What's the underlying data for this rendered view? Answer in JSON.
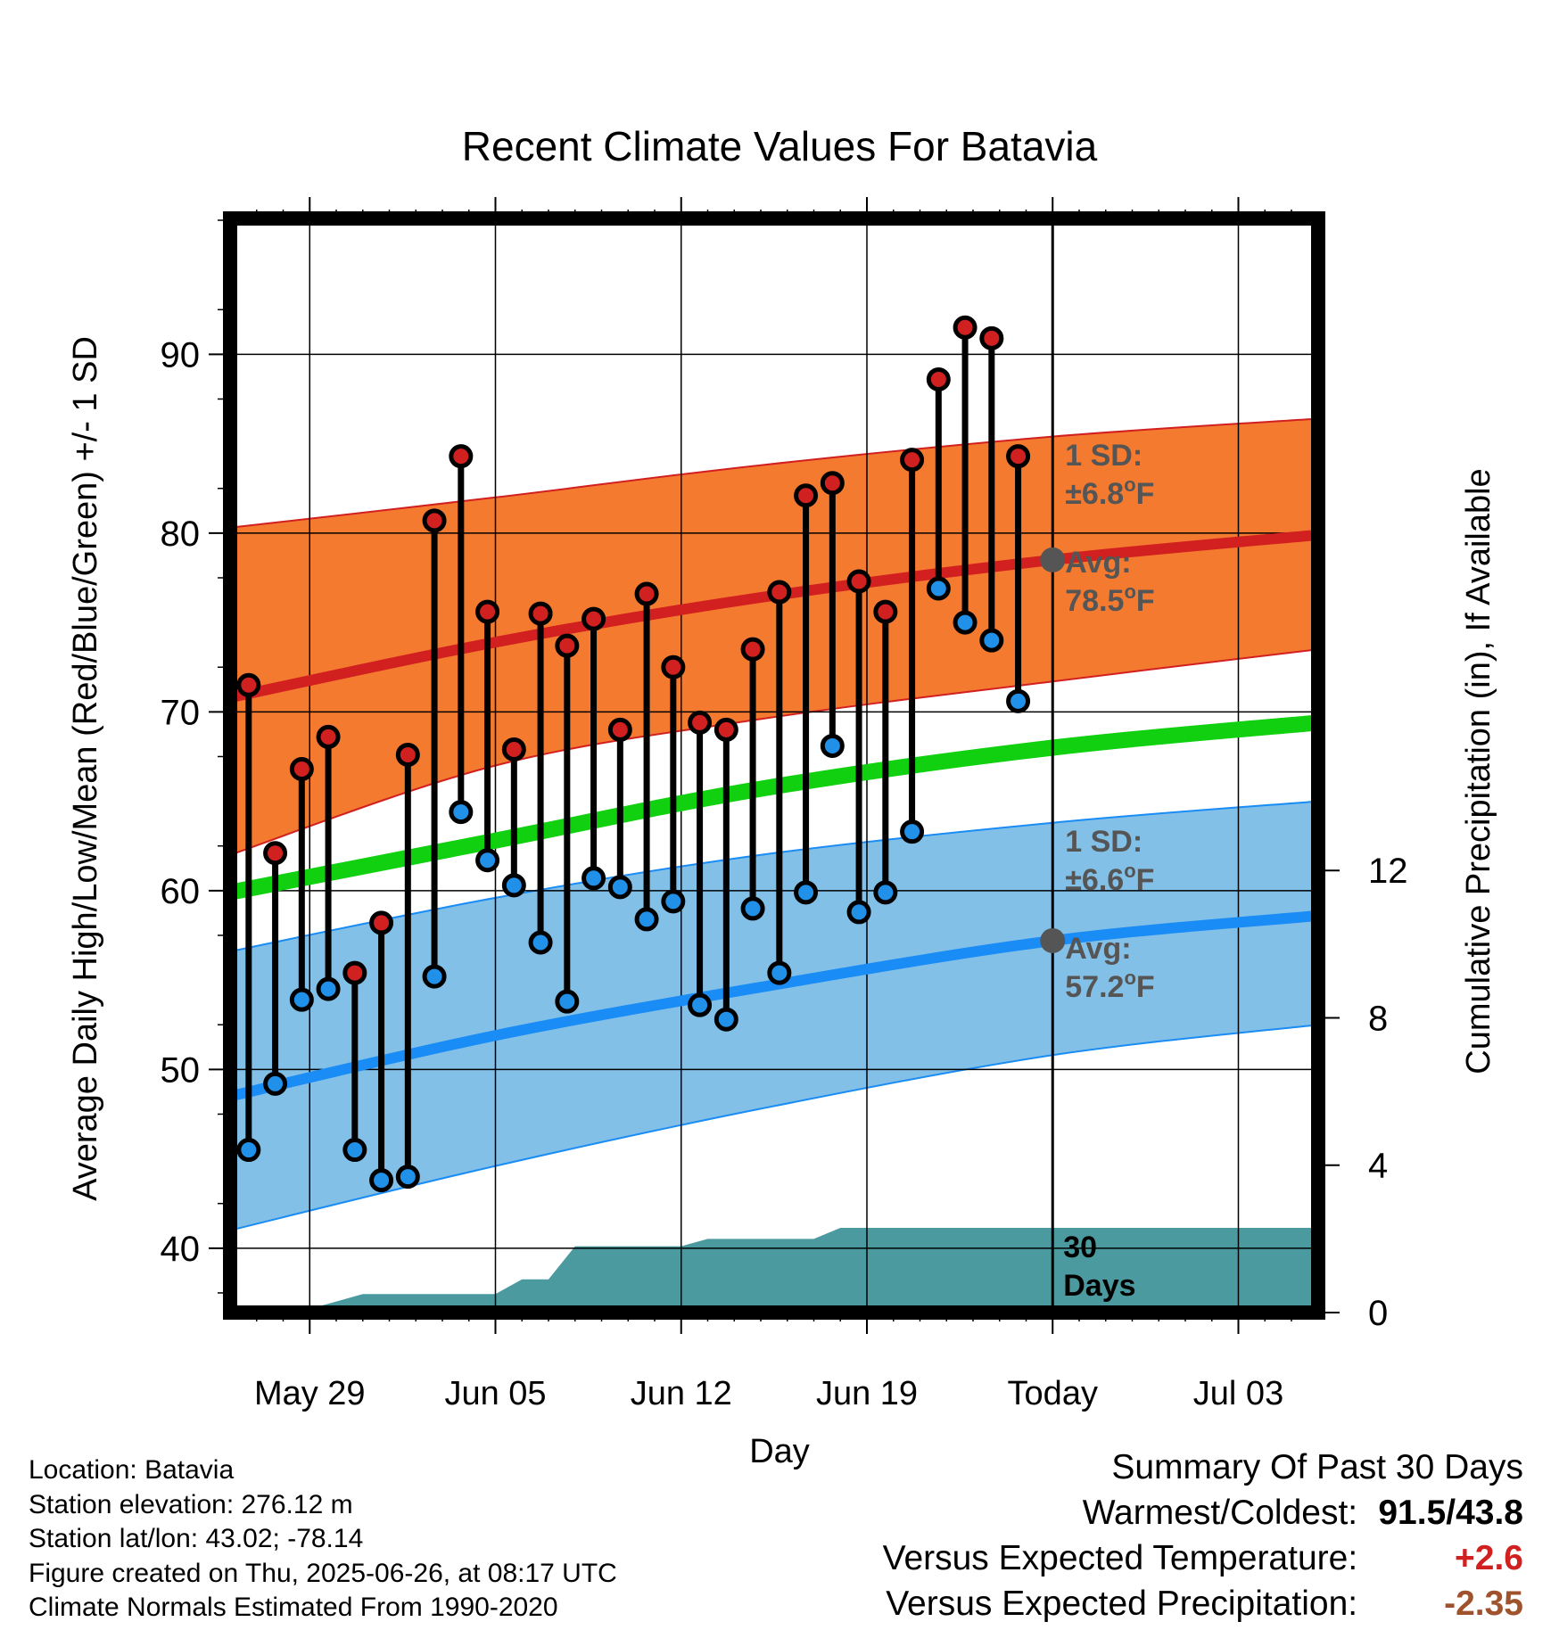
{
  "chart_data": {
    "type": "line",
    "title": "Recent Climate Values For Batavia",
    "xlabel": "Day",
    "ylabel": "Average Daily High/Low/Mean (Red/Blue/Green) +/- 1 SD",
    "ylabel_right": "Cumulative Precipitation (in), If Available",
    "x_start": "May 26",
    "x_end": "Jul 05",
    "x_ticks": [
      {
        "day": 3,
        "label": "May 29"
      },
      {
        "day": 10,
        "label": "Jun 05"
      },
      {
        "day": 17,
        "label": "Jun 12"
      },
      {
        "day": 24,
        "label": "Jun 19"
      },
      {
        "day": 31,
        "label": "Today"
      },
      {
        "day": 38,
        "label": "Jul 03"
      }
    ],
    "ylim": [
      36.4,
      97.6
    ],
    "yticks": [
      40,
      50,
      60,
      70,
      80,
      90
    ],
    "y2lim": [
      0,
      29.7
    ],
    "y2ticks": [
      0,
      4,
      8,
      12
    ],
    "grid": true,
    "today_day": 31,
    "normals": {
      "days": [
        0,
        10,
        20,
        31,
        41
      ],
      "high_mean": [
        70.8,
        73.9,
        76.4,
        78.5,
        79.9
      ],
      "high_upper": [
        80.3,
        82.0,
        83.8,
        85.4,
        86.4
      ],
      "high_lower": [
        62.0,
        67.0,
        69.6,
        71.7,
        73.5
      ],
      "low_mean": [
        48.5,
        51.9,
        54.6,
        57.2,
        58.6
      ],
      "low_upper": [
        56.6,
        59.6,
        62.0,
        63.8,
        65.0
      ],
      "low_lower": [
        41.0,
        44.6,
        47.8,
        50.8,
        52.5
      ],
      "daily_mean": [
        59.9,
        62.8,
        65.7,
        68.0,
        69.4
      ]
    },
    "series": [
      {
        "name": "High",
        "color": "#d02020",
        "days": [
          0.7,
          1.7,
          2.7,
          3.7,
          4.7,
          5.7,
          6.7,
          7.7,
          8.7,
          9.7,
          10.7,
          11.7,
          12.7,
          13.7,
          14.7,
          15.7,
          16.7,
          17.7,
          18.7,
          19.7,
          20.7,
          21.7,
          22.7,
          23.7,
          24.7,
          25.7,
          26.7,
          27.7,
          28.7,
          29.7
        ],
        "values": [
          71.5,
          62.1,
          66.8,
          68.6,
          55.4,
          58.2,
          67.6,
          80.7,
          84.3,
          75.6,
          67.9,
          75.5,
          73.7,
          75.2,
          69.0,
          76.6,
          72.5,
          69.4,
          69.0,
          73.5,
          76.7,
          82.1,
          82.8,
          77.3,
          75.6,
          84.1,
          88.6,
          91.5,
          90.9,
          84.3
        ]
      },
      {
        "name": "Low",
        "color": "#2090e8",
        "days": [
          0.7,
          1.7,
          2.7,
          3.7,
          4.7,
          5.7,
          6.7,
          7.7,
          8.7,
          9.7,
          10.7,
          11.7,
          12.7,
          13.7,
          14.7,
          15.7,
          16.7,
          17.7,
          18.7,
          19.7,
          20.7,
          21.7,
          22.7,
          23.7,
          24.7,
          25.7,
          26.7,
          27.7,
          28.7,
          29.7
        ],
        "values": [
          45.5,
          49.2,
          53.9,
          54.5,
          45.5,
          43.8,
          44.0,
          55.2,
          64.4,
          61.7,
          60.3,
          57.1,
          53.8,
          60.7,
          60.2,
          58.4,
          59.4,
          53.6,
          52.8,
          59.0,
          55.4,
          59.9,
          68.1,
          58.8,
          59.9,
          63.3,
          76.9,
          75.0,
          74.0,
          70.6
        ]
      },
      {
        "name": "Cumulative Precipitation",
        "color": "#4a9aa0",
        "days": [
          0,
          2,
          3,
          4,
          5,
          10,
          11,
          12,
          13,
          14,
          15,
          16,
          17,
          18,
          19,
          20,
          21,
          22,
          23,
          24,
          31,
          40.8
        ],
        "values": [
          0,
          0,
          0.1,
          0.3,
          0.5,
          0.5,
          0.9,
          0.9,
          1.8,
          1.8,
          1.8,
          1.8,
          1.8,
          2.0,
          2.0,
          2.0,
          2.0,
          2.0,
          2.3,
          2.3,
          2.3,
          2.3
        ]
      }
    ],
    "annotations": [
      {
        "text": "1 SD:",
        "position": "upper band"
      },
      {
        "text": "±6.8",
        "position": "upper band"
      },
      {
        "text": "Avg:",
        "position": "upper band"
      },
      {
        "text": "78.5",
        "position": "upper band"
      },
      {
        "text": "1 SD:",
        "position": "lower band"
      },
      {
        "text": "±6.6",
        "position": "lower band"
      },
      {
        "text": "Avg:",
        "position": "lower band"
      },
      {
        "text": "57.2",
        "position": "lower band"
      },
      {
        "text": "o",
        "position": "degree sign"
      },
      {
        "text": "F",
        "position": "unit"
      },
      {
        "text": "30",
        "position": "precip label"
      },
      {
        "text": "Days",
        "position": "precip label"
      }
    ]
  },
  "info": {
    "location": "Location: Batavia",
    "elevation": "Station elevation: 276.12 m",
    "latlon": "Station lat/lon: 43.02; -78.14",
    "created": "Figure created on Thu, 2025-06-26, at 08:17 UTC",
    "normals": "Climate Normals Estimated From 1990-2020"
  },
  "summary": {
    "title": "Summary Of Past 30 Days",
    "warmest_label": "Warmest/Coldest:",
    "warmest_value": "91.5/43.8",
    "temp_label": "Versus Expected Temperature:",
    "temp_value": "+2.6",
    "precip_label": "Versus Expected Precipitation:",
    "precip_value": "-2.35"
  },
  "colors": {
    "high_band": "#f47a30",
    "high_line": "#d22020",
    "low_band": "#82c0e8",
    "low_line": "#1a8cf5",
    "mean_line": "#10d010",
    "precip_fill": "#4a9aa0",
    "annotation_text": "#555555",
    "temp_value": "#d02020",
    "precip_value": "#a0522d"
  }
}
